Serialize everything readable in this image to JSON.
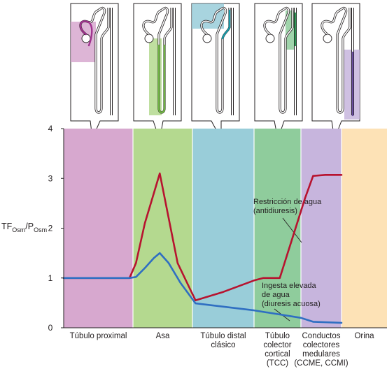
{
  "chart_data": {
    "type": "line",
    "ylabel": {
      "main": "TF",
      "sub1": "Osm",
      "sep": "/P",
      "sub2": "Osm"
    },
    "ylim": [
      0,
      4
    ],
    "yticks": [
      "0",
      "1",
      "2",
      "3",
      "4"
    ],
    "segments": [
      {
        "key": "proximal",
        "label_lines": [
          "Túbulo proximal"
        ],
        "color": "#d7a8cf"
      },
      {
        "key": "asa",
        "label_lines": [
          "Asa"
        ],
        "color": "#b4d98f"
      },
      {
        "key": "distal",
        "label_lines": [
          "Túbulo distal",
          "clásico"
        ],
        "color": "#99cdd9"
      },
      {
        "key": "tcc",
        "label_lines": [
          "Túbulo",
          "colector",
          "cortical",
          "(TCC)"
        ],
        "color": "#8fcc9c"
      },
      {
        "key": "medular",
        "label_lines": [
          "Conductos",
          "colectores",
          "medulares",
          "(CCME, CCMI)"
        ],
        "color": "#c7b5dd"
      },
      {
        "key": "orina",
        "label_lines": [
          "Orina"
        ],
        "color": "#fde2b6"
      }
    ],
    "series": [
      {
        "name": "Restricción de agua (antidiuresis)",
        "color": "#b7132f",
        "points": [
          [
            0,
            1
          ],
          [
            0.95,
            1
          ],
          [
            1.05,
            1.3
          ],
          [
            1.2,
            2.1
          ],
          [
            1.35,
            2.7
          ],
          [
            1.45,
            3.1
          ],
          [
            1.55,
            2.5
          ],
          [
            1.75,
            1.3
          ],
          [
            1.95,
            0.8
          ],
          [
            2.05,
            0.55
          ],
          [
            2.5,
            0.72
          ],
          [
            3,
            0.95
          ],
          [
            3.2,
            1
          ],
          [
            3.55,
            1
          ],
          [
            4.1,
            2.6
          ],
          [
            4.3,
            3.05
          ],
          [
            4.6,
            3.07
          ],
          [
            5,
            3.07
          ]
        ]
      },
      {
        "name": "Ingesta elevada de agua (diuresis acuosa)",
        "color": "#2f6fc2",
        "points": [
          [
            0,
            1
          ],
          [
            0.95,
            1
          ],
          [
            1.05,
            1.02
          ],
          [
            1.2,
            1.2
          ],
          [
            1.35,
            1.4
          ],
          [
            1.45,
            1.5
          ],
          [
            1.6,
            1.3
          ],
          [
            1.8,
            0.9
          ],
          [
            2.05,
            0.49
          ],
          [
            3,
            0.35
          ],
          [
            4,
            0.2
          ],
          [
            4.3,
            0.12
          ],
          [
            5,
            0.1
          ]
        ]
      }
    ],
    "annotations": [
      {
        "lines": [
          "Restricción de agua",
          "(antidiuresis)"
        ]
      },
      {
        "lines": [
          "Ingesta elevada",
          "de agua",
          "(diuresis acuosa)"
        ]
      }
    ]
  }
}
